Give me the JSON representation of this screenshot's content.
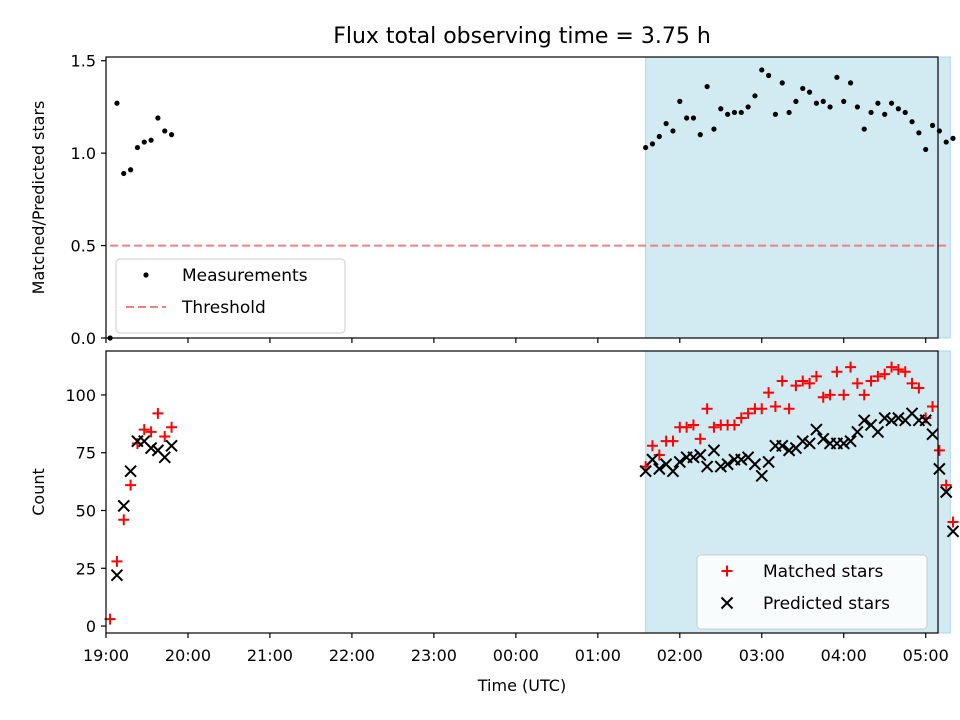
{
  "title": "Flux total observing time = 3.75 h",
  "colors": {
    "shade": "#add8e6",
    "threshold": "#f08080",
    "matched": "#ff0000",
    "predicted": "#000000",
    "measurement": "#000000"
  },
  "chart_data": [
    {
      "type": "scatter",
      "panel": "top",
      "ylabel": "Matched/Predicted stars",
      "ylim": [
        0,
        1.52
      ],
      "yticks": [
        "0.0",
        "0.5",
        "1.0",
        "1.5"
      ],
      "shaded_interval": [
        "01:35",
        "05:18"
      ],
      "legend": {
        "placement": "lower-left",
        "entries": [
          "Measurements",
          "Threshold"
        ]
      },
      "threshold": {
        "name": "Threshold",
        "value": 0.5,
        "x_range": [
          "19:03",
          "05:18"
        ],
        "style": "dashed"
      },
      "series": [
        {
          "name": "Measurements",
          "marker": "dot",
          "points": [
            [
              "19:03",
              0.0
            ],
            [
              "19:08",
              1.27
            ],
            [
              "19:13",
              0.89
            ],
            [
              "19:18",
              0.91
            ],
            [
              "19:23",
              1.03
            ],
            [
              "19:28",
              1.06
            ],
            [
              "19:33",
              1.07
            ],
            [
              "19:38",
              1.19
            ],
            [
              "19:43",
              1.12
            ],
            [
              "19:48",
              1.1
            ],
            [
              "01:35",
              1.03
            ],
            [
              "01:40",
              1.05
            ],
            [
              "01:45",
              1.09
            ],
            [
              "01:50",
              1.16
            ],
            [
              "01:55",
              1.12
            ],
            [
              "02:00",
              1.28
            ],
            [
              "02:05",
              1.19
            ],
            [
              "02:10",
              1.19
            ],
            [
              "02:15",
              1.1
            ],
            [
              "02:20",
              1.36
            ],
            [
              "02:25",
              1.13
            ],
            [
              "02:30",
              1.24
            ],
            [
              "02:35",
              1.21
            ],
            [
              "02:40",
              1.22
            ],
            [
              "02:45",
              1.22
            ],
            [
              "02:50",
              1.25
            ],
            [
              "02:55",
              1.31
            ],
            [
              "03:00",
              1.45
            ],
            [
              "03:05",
              1.42
            ],
            [
              "03:10",
              1.21
            ],
            [
              "03:15",
              1.38
            ],
            [
              "03:20",
              1.22
            ],
            [
              "03:25",
              1.28
            ],
            [
              "03:30",
              1.35
            ],
            [
              "03:35",
              1.33
            ],
            [
              "03:40",
              1.27
            ],
            [
              "03:45",
              1.28
            ],
            [
              "03:50",
              1.25
            ],
            [
              "03:55",
              1.41
            ],
            [
              "04:00",
              1.28
            ],
            [
              "04:05",
              1.38
            ],
            [
              "04:10",
              1.25
            ],
            [
              "04:15",
              1.13
            ],
            [
              "04:20",
              1.22
            ],
            [
              "04:25",
              1.27
            ],
            [
              "04:30",
              1.21
            ],
            [
              "04:35",
              1.27
            ],
            [
              "04:40",
              1.24
            ],
            [
              "04:45",
              1.22
            ],
            [
              "04:50",
              1.17
            ],
            [
              "04:55",
              1.11
            ],
            [
              "05:00",
              1.02
            ],
            [
              "05:05",
              1.15
            ],
            [
              "05:10",
              1.12
            ],
            [
              "05:15",
              1.06
            ],
            [
              "05:20",
              1.08
            ]
          ]
        }
      ]
    },
    {
      "type": "scatter",
      "panel": "bottom",
      "xlabel": "Time (UTC)",
      "ylabel": "Count",
      "ylim": [
        -3,
        119
      ],
      "yticks": [
        "0",
        "25",
        "50",
        "75",
        "100"
      ],
      "xticks": [
        "19:00",
        "20:00",
        "21:00",
        "22:00",
        "23:00",
        "00:00",
        "01:00",
        "02:00",
        "03:00",
        "04:00",
        "05:00"
      ],
      "shaded_interval": [
        "01:35",
        "05:18"
      ],
      "legend": {
        "placement": "lower-right",
        "entries": [
          "Matched stars",
          "Predicted stars"
        ]
      },
      "series": [
        {
          "name": "Matched stars",
          "marker": "plus",
          "points": [
            [
              "19:03",
              3
            ],
            [
              "19:08",
              28
            ],
            [
              "19:13",
              46
            ],
            [
              "19:18",
              61
            ],
            [
              "19:23",
              79
            ],
            [
              "19:28",
              85
            ],
            [
              "19:33",
              84
            ],
            [
              "19:38",
              92
            ],
            [
              "19:43",
              82
            ],
            [
              "19:48",
              86
            ],
            [
              "01:35",
              69
            ],
            [
              "01:40",
              78
            ],
            [
              "01:45",
              74
            ],
            [
              "01:50",
              80
            ],
            [
              "01:55",
              80
            ],
            [
              "02:00",
              86
            ],
            [
              "02:05",
              86
            ],
            [
              "02:10",
              87
            ],
            [
              "02:15",
              81
            ],
            [
              "02:20",
              94
            ],
            [
              "02:25",
              86
            ],
            [
              "02:30",
              87
            ],
            [
              "02:35",
              87
            ],
            [
              "02:40",
              87
            ],
            [
              "02:45",
              90
            ],
            [
              "02:50",
              92
            ],
            [
              "02:55",
              94
            ],
            [
              "03:00",
              94
            ],
            [
              "03:05",
              101
            ],
            [
              "03:10",
              95
            ],
            [
              "03:15",
              106
            ],
            [
              "03:20",
              94
            ],
            [
              "03:25",
              104
            ],
            [
              "03:30",
              106
            ],
            [
              "03:35",
              105
            ],
            [
              "03:40",
              108
            ],
            [
              "03:45",
              99
            ],
            [
              "03:50",
              100
            ],
            [
              "03:55",
              110
            ],
            [
              "04:00",
              100
            ],
            [
              "04:05",
              112
            ],
            [
              "04:10",
              105
            ],
            [
              "04:15",
              100
            ],
            [
              "04:20",
              106
            ],
            [
              "04:25",
              108
            ],
            [
              "04:30",
              109
            ],
            [
              "04:35",
              112
            ],
            [
              "04:40",
              111
            ],
            [
              "04:45",
              110
            ],
            [
              "04:50",
              105
            ],
            [
              "04:55",
              103
            ],
            [
              "05:00",
              90
            ],
            [
              "05:05",
              95
            ],
            [
              "05:10",
              76
            ],
            [
              "05:15",
              61
            ],
            [
              "05:20",
              45
            ]
          ]
        },
        {
          "name": "Predicted stars",
          "marker": "x",
          "points": [
            [
              "19:08",
              22
            ],
            [
              "19:13",
              52
            ],
            [
              "19:18",
              67
            ],
            [
              "19:23",
              80
            ],
            [
              "19:28",
              80
            ],
            [
              "19:33",
              77
            ],
            [
              "19:38",
              76
            ],
            [
              "19:43",
              73
            ],
            [
              "19:48",
              78
            ],
            [
              "01:35",
              67
            ],
            [
              "01:40",
              72
            ],
            [
              "01:45",
              68
            ],
            [
              "01:50",
              70
            ],
            [
              "01:55",
              67
            ],
            [
              "02:00",
              71
            ],
            [
              "02:05",
              73
            ],
            [
              "02:10",
              73
            ],
            [
              "02:15",
              74
            ],
            [
              "02:20",
              69
            ],
            [
              "02:25",
              76
            ],
            [
              "02:30",
              69
            ],
            [
              "02:35",
              70
            ],
            [
              "02:40",
              72
            ],
            [
              "02:45",
              72
            ],
            [
              "02:50",
              73
            ],
            [
              "02:55",
              70
            ],
            [
              "03:00",
              65
            ],
            [
              "03:05",
              71
            ],
            [
              "03:10",
              78
            ],
            [
              "03:15",
              78
            ],
            [
              "03:20",
              76
            ],
            [
              "03:25",
              77
            ],
            [
              "03:30",
              80
            ],
            [
              "03:35",
              79
            ],
            [
              "03:40",
              85
            ],
            [
              "03:45",
              81
            ],
            [
              "03:50",
              79
            ],
            [
              "03:55",
              79
            ],
            [
              "04:00",
              79
            ],
            [
              "04:05",
              80
            ],
            [
              "04:10",
              84
            ],
            [
              "04:15",
              89
            ],
            [
              "04:20",
              87
            ],
            [
              "04:25",
              84
            ],
            [
              "04:30",
              90
            ],
            [
              "04:35",
              89
            ],
            [
              "04:40",
              90
            ],
            [
              "04:45",
              89
            ],
            [
              "04:50",
              92
            ],
            [
              "04:55",
              89
            ],
            [
              "05:00",
              89
            ],
            [
              "05:05",
              83
            ],
            [
              "05:10",
              68
            ],
            [
              "05:15",
              58
            ],
            [
              "05:20",
              41
            ]
          ]
        }
      ]
    }
  ]
}
